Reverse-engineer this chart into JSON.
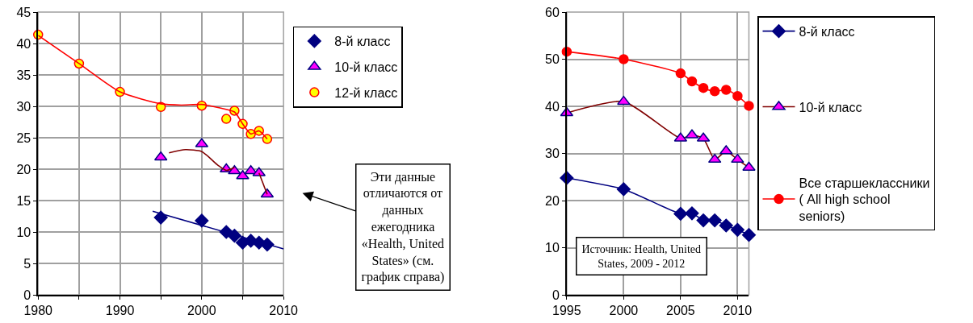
{
  "chart_data": [
    {
      "type": "scatter",
      "xlim": [
        1980,
        2010
      ],
      "ylim": [
        0,
        45
      ],
      "xticks": [
        1980,
        {
          "value": 1985,
          "label": null
        },
        1990,
        {
          "value": 1995,
          "label": null
        },
        2000,
        {
          "value": 2005,
          "label": null
        },
        2010
      ],
      "yticks": [
        0,
        5,
        10,
        15,
        20,
        25,
        30,
        35,
        40,
        45
      ],
      "grid": true,
      "legend": "top right",
      "annotations": [
        "Эти данные отличаются от данных ежегодника «Health, United States» (см. график справа)"
      ],
      "series": [
        {
          "name": "8-й класс",
          "type": "scatter",
          "marker": "diamond",
          "color": "#000080",
          "x": [
            1995,
            2000,
            2003,
            2004,
            2005,
            2006,
            2007,
            2008
          ],
          "values": [
            12.3,
            11.8,
            10.0,
            9.4,
            8.3,
            8.6,
            8.3,
            8.0
          ]
        },
        {
          "name": "10-й класс",
          "type": "scatter",
          "marker": "triangle",
          "color": "#ff00ff",
          "x": [
            1995,
            2000,
            2003,
            2004,
            2005,
            2006,
            2007,
            2008
          ],
          "values": [
            21.9,
            24.0,
            20.0,
            19.7,
            18.9,
            19.7,
            19.4,
            16.0
          ]
        },
        {
          "name": "12-й класс",
          "type": "scatter",
          "marker": "circle",
          "color": "#ffff00",
          "x": [
            1980,
            1985,
            1990,
            1995,
            2000,
            2003,
            2004,
            2005,
            2006,
            2007,
            2008
          ],
          "values": [
            41.4,
            36.8,
            32.3,
            29.9,
            30.1,
            28.0,
            29.3,
            27.2,
            25.6,
            26.1,
            24.8
          ]
        },
        {
          "type": "line",
          "color": "#000080",
          "x": [
            1994,
            2010
          ],
          "values": [
            13.3,
            7.3
          ]
        },
        {
          "type": "line",
          "color": "#800000",
          "x": [
            1996,
            1998,
            2000,
            2002,
            2003,
            2004,
            2005.5,
            2007,
            2008
          ],
          "values": [
            22.6,
            23.1,
            22.8,
            20.6,
            19.8,
            20.3,
            null,
            19.4,
            16.0
          ]
        },
        {
          "type": "line",
          "color": "#ff0000",
          "x": [
            1980,
            1985,
            1990,
            1995,
            1997.5,
            2000,
            2002,
            2004,
            2005,
            2006,
            2007,
            2008
          ],
          "values": [
            41.3,
            36.8,
            32.3,
            30.4,
            30.2,
            30.3,
            29.8,
            29.1,
            27.2,
            25.6,
            26.1,
            24.8
          ]
        }
      ]
    },
    {
      "type": "line",
      "xlim": [
        1995,
        2011
      ],
      "ylim": [
        0,
        60
      ],
      "xticks": [
        1995,
        2000,
        2005,
        2010
      ],
      "yticks": [
        0,
        10,
        20,
        30,
        40,
        50,
        60
      ],
      "grid": true,
      "legend": "right",
      "annotations": [
        "Источник: Health, United States, 2009 - 2012"
      ],
      "series": [
        {
          "name": "8-й класс",
          "marker": "diamond",
          "color": "#000080",
          "x": [
            1995,
            2000,
            2005,
            2006,
            2007,
            2008,
            2009,
            2010,
            2011
          ],
          "values": [
            24.8,
            22.4,
            17.2,
            17.3,
            15.8,
            15.8,
            14.7,
            13.8,
            12.7
          ]
        },
        {
          "name": "10-й класс",
          "marker": "triangle",
          "color": "#ff00ff",
          "x": [
            1995,
            2000,
            2005,
            2006,
            2007,
            2008,
            2009,
            2010,
            2011
          ],
          "values": [
            38.6,
            41.0,
            33.2,
            33.9,
            33.2,
            28.7,
            30.5,
            28.7,
            27.0
          ]
        },
        {
          "name": "Все старшеклассники ( All high school seniors)",
          "marker": "circle",
          "color": "#ff0000",
          "x": [
            1995,
            2000,
            2005,
            2006,
            2007,
            2008,
            2009,
            2010,
            2011
          ],
          "values": [
            51.6,
            50.0,
            47.0,
            45.3,
            43.9,
            43.2,
            43.5,
            42.2,
            40.1
          ]
        }
      ]
    }
  ]
}
